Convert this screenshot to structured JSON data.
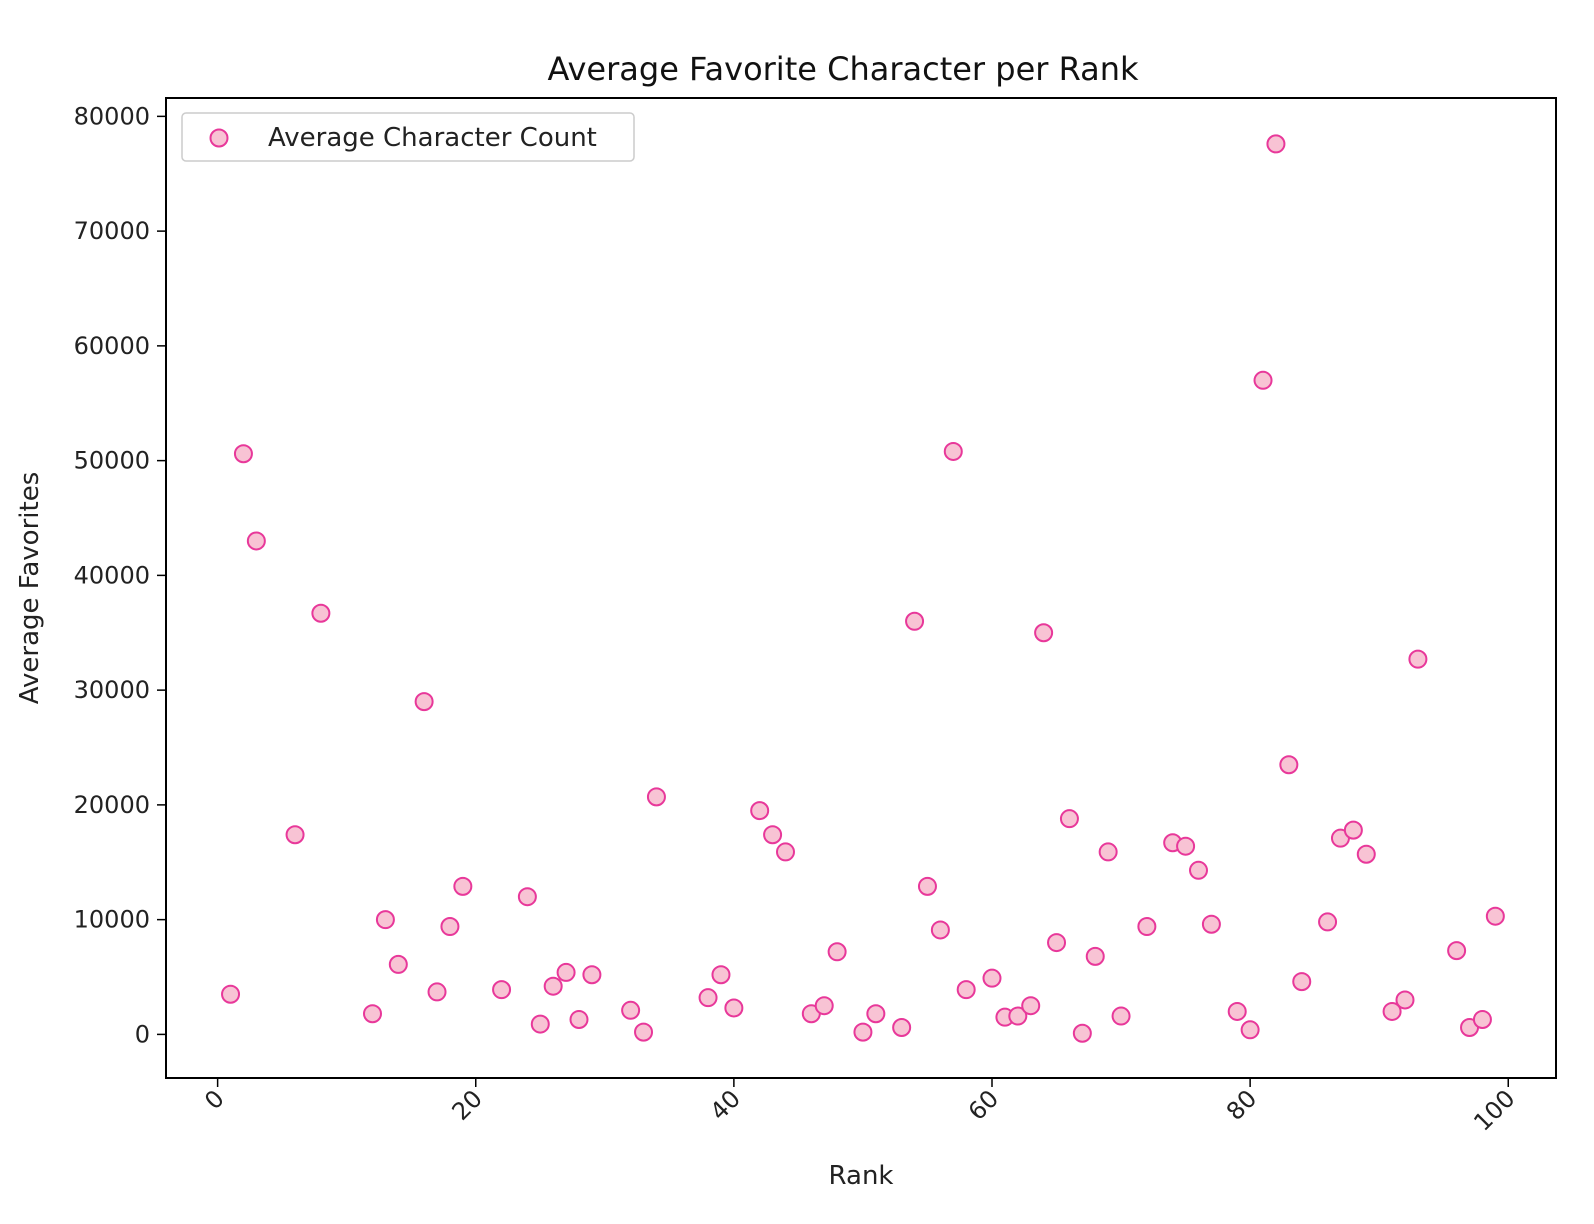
{
  "chart_data": {
    "type": "scatter",
    "title": "Average Favorite Character per Rank",
    "xlabel": "Rank",
    "ylabel": "Average Favorites",
    "xlim": [
      -4,
      103.7
    ],
    "ylim": [
      -3800,
      81600
    ],
    "xticks": [
      0,
      20,
      40,
      60,
      80,
      100
    ],
    "yticks": [
      0,
      10000,
      20000,
      30000,
      40000,
      50000,
      60000,
      70000,
      80000
    ],
    "grid": false,
    "legend_position": "top-left",
    "colors": {
      "marker_fill": "#f8c3d4",
      "marker_edge": "#e8389a",
      "axis": "#000000"
    },
    "series": [
      {
        "name": "Average Character Count",
        "x": [
          1,
          2,
          3,
          6,
          8,
          12,
          13,
          14,
          16,
          17,
          18,
          19,
          22,
          24,
          25,
          26,
          27,
          28,
          29,
          32,
          33,
          34,
          38,
          39,
          40,
          42,
          43,
          44,
          46,
          47,
          48,
          50,
          51,
          53,
          54,
          55,
          56,
          57,
          58,
          60,
          61,
          62,
          63,
          64,
          65,
          66,
          67,
          68,
          69,
          70,
          72,
          74,
          75,
          76,
          77,
          79,
          80,
          81,
          82,
          83,
          84,
          86,
          87,
          88,
          89,
          91,
          92,
          93,
          96,
          97,
          98,
          99
        ],
        "y": [
          3500,
          50600,
          43000,
          17400,
          36700,
          1800,
          10000,
          6100,
          29000,
          3700,
          9400,
          12900,
          3900,
          12000,
          900,
          4200,
          5400,
          1300,
          5200,
          2100,
          200,
          20700,
          3200,
          5200,
          2300,
          19500,
          17400,
          15900,
          1800,
          2500,
          7200,
          200,
          1800,
          600,
          36000,
          12900,
          9100,
          50800,
          3900,
          4900,
          1500,
          1600,
          2500,
          35000,
          8000,
          18800,
          100,
          6800,
          15900,
          1600,
          9400,
          16700,
          16400,
          14300,
          9600,
          2000,
          400,
          57000,
          77600,
          23500,
          4600,
          9800,
          17100,
          17800,
          15700,
          2000,
          3000,
          32700,
          7300,
          600,
          1300,
          10300
        ]
      }
    ]
  }
}
